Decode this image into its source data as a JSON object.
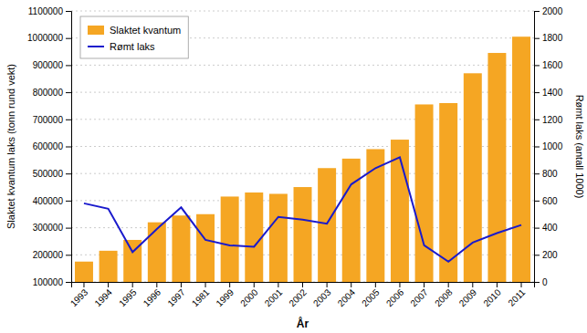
{
  "chart_data": {
    "type": "bar",
    "categories": [
      "1993",
      "1994",
      "1995",
      "1996",
      "1997",
      "1981",
      "1999",
      "2000",
      "2001",
      "2002",
      "2003",
      "2004",
      "2005",
      "2006",
      "2007",
      "2008",
      "2009",
      "2010",
      "2011"
    ],
    "series": [
      {
        "name": "Slaktet kvantum",
        "type": "bar",
        "color": "#F5A623",
        "values": [
          175000,
          215000,
          255000,
          320000,
          345000,
          350000,
          415000,
          430000,
          425000,
          450000,
          520000,
          555000,
          590000,
          625000,
          755000,
          760000,
          870000,
          945000,
          1005000
        ]
      },
      {
        "name": "Rømt laks",
        "type": "line",
        "color": "#1A1ACC",
        "axis": "y2",
        "values": [
          580,
          540,
          220,
          390,
          550,
          310,
          270,
          260,
          480,
          460,
          430,
          720,
          840,
          920,
          270,
          150,
          290,
          360,
          420
        ]
      }
    ],
    "xlabel": "År",
    "ylabel": "Slaktet kvantum laks (tonn rund vekt)",
    "y2label": "Rømt laks (antall 1000)",
    "ylim": [
      100000,
      1100000
    ],
    "yticks": [
      100000,
      200000,
      300000,
      400000,
      500000,
      600000,
      700000,
      800000,
      900000,
      1000000,
      1100000
    ],
    "y2lim": [
      0,
      2000
    ],
    "y2ticks": [
      0,
      200,
      400,
      600,
      800,
      1000,
      1200,
      1400,
      1600,
      1800,
      2000
    ],
    "grid": true,
    "legend": "upper left"
  }
}
